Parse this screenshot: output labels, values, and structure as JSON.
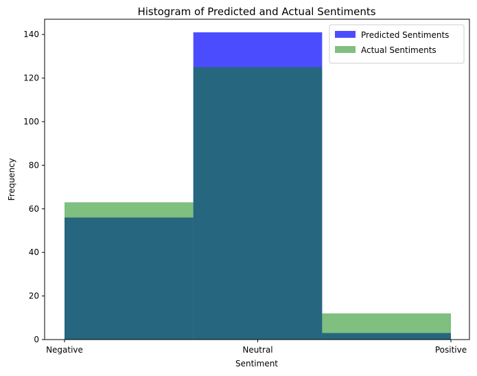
{
  "chart_data": {
    "type": "bar",
    "title": "Histogram of Predicted and Actual Sentiments",
    "xlabel": "Sentiment",
    "ylabel": "Frequency",
    "categories": [
      "Negative",
      "Neutral",
      "Positive"
    ],
    "ylim": [
      0,
      147
    ],
    "yticks": [
      0,
      20,
      40,
      60,
      80,
      100,
      120,
      140
    ],
    "series": [
      {
        "name": "Predicted Sentiments",
        "values": [
          56,
          141,
          3
        ],
        "color": "#0000ff",
        "alpha": 0.7
      },
      {
        "name": "Actual Sentiments",
        "values": [
          63,
          125,
          12
        ],
        "color": "#008000",
        "alpha": 0.5
      }
    ],
    "legend_position": "top-right",
    "grid": false
  }
}
